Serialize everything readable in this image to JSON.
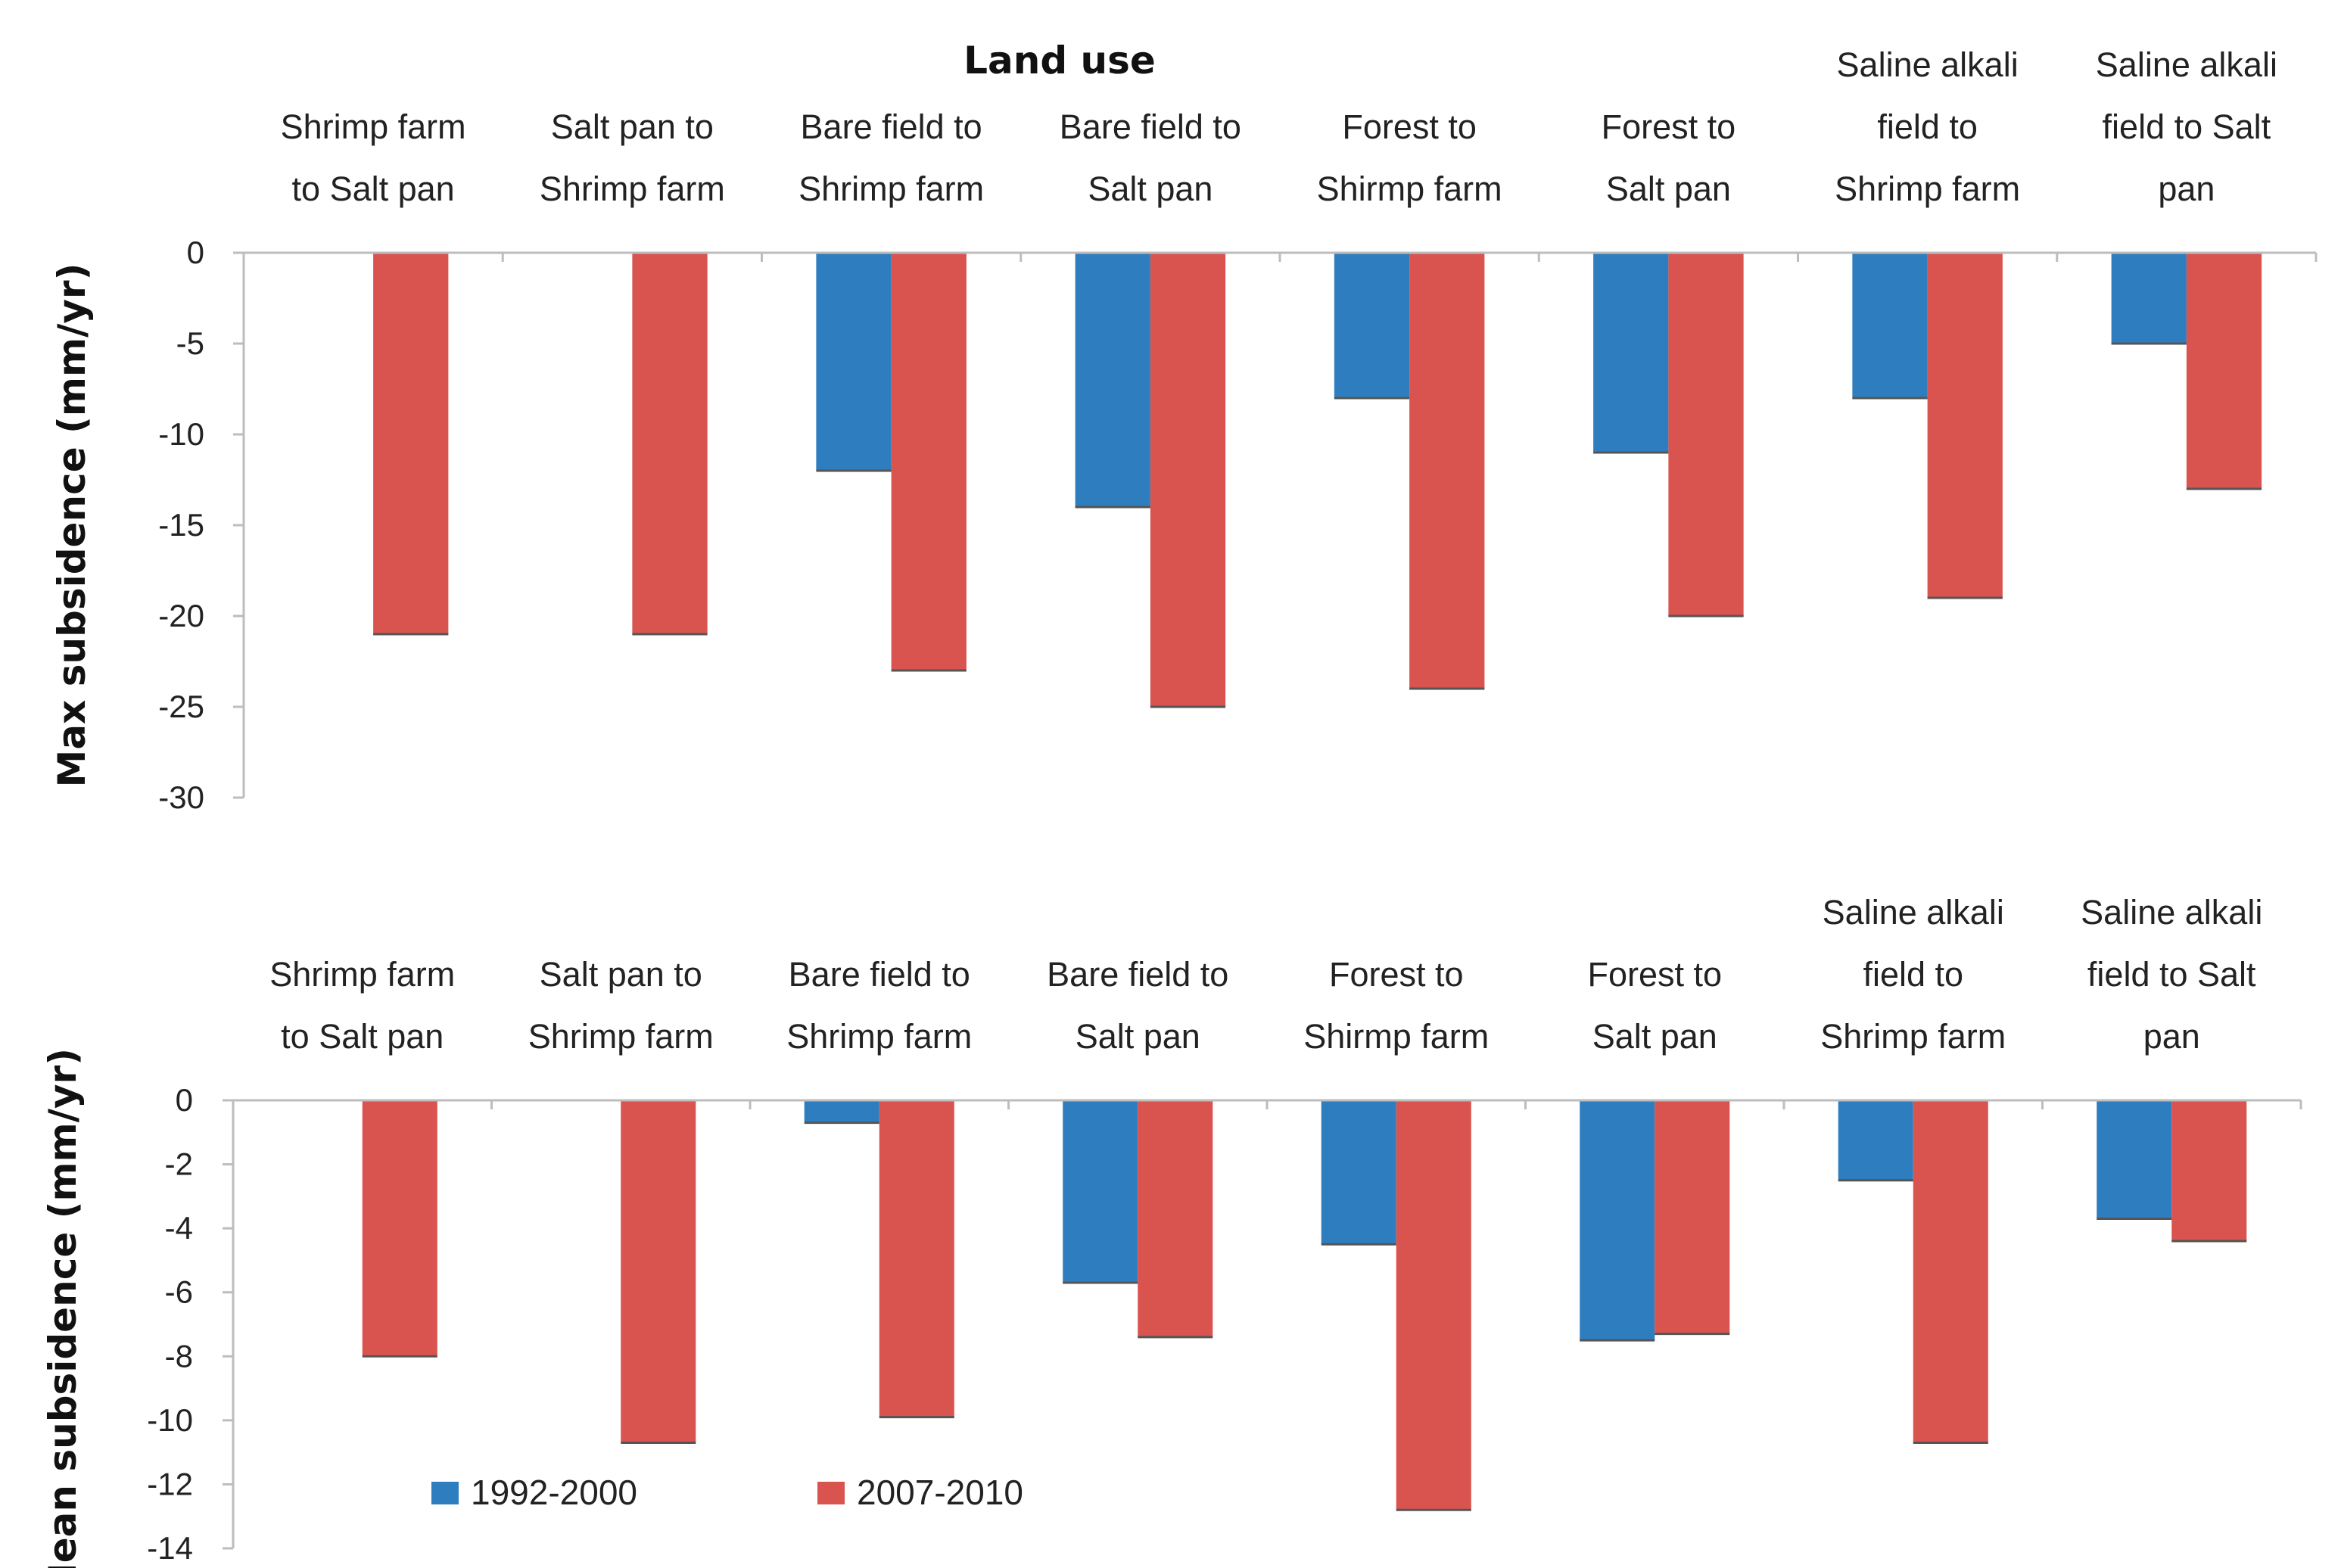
{
  "colors": {
    "series1": "#2e7ebf",
    "series2": "#d9534f",
    "axis": "#bdbdbd"
  },
  "legend": {
    "placement": "bottom-left"
  },
  "chart_data": [
    {
      "type": "bar",
      "title": "Land use",
      "ylabel": "Max subsidence (mm/yr)",
      "ylim": [
        -30,
        0
      ],
      "yticks": [
        "0",
        "-5",
        "-10",
        "-15",
        "-20",
        "-25",
        "-30"
      ],
      "categories": [
        [
          "Shrimp farm",
          "to Salt pan"
        ],
        [
          "Salt pan to",
          "Shrimp farm"
        ],
        [
          "Bare field to",
          "Shrimp farm"
        ],
        [
          "Bare field to",
          "Salt pan"
        ],
        [
          "Forest to",
          "Shirmp farm"
        ],
        [
          "Forest to",
          "Salt pan"
        ],
        [
          "Saline alkali",
          "field to",
          "Shrimp farm"
        ],
        [
          "Saline alkali",
          "field to Salt",
          "pan"
        ]
      ],
      "series": [
        {
          "name": "1992-2000",
          "values": [
            0,
            0,
            -12,
            -14,
            -8,
            -11,
            -8,
            -5
          ]
        },
        {
          "name": "2007-2010",
          "values": [
            -21,
            -21,
            -23,
            -25,
            -24,
            -20,
            -19,
            -13
          ]
        }
      ]
    },
    {
      "type": "bar",
      "ylabel": "Mean subsidence (mm/yr)",
      "ylim": [
        -14,
        0
      ],
      "yticks": [
        "0",
        "-2",
        "-4",
        "-6",
        "-8",
        "-10",
        "-12",
        "-14"
      ],
      "categories": [
        [
          "Shrimp farm",
          "to Salt pan"
        ],
        [
          "Salt pan to",
          "Shrimp farm"
        ],
        [
          "Bare field to",
          "Shrimp farm"
        ],
        [
          "Bare field to",
          "Salt pan"
        ],
        [
          "Forest to",
          "Shirmp farm"
        ],
        [
          "Forest to",
          "Salt pan"
        ],
        [
          "Saline alkali",
          "field to",
          "Shrimp farm"
        ],
        [
          "Saline alkali",
          "field to Salt",
          "pan"
        ]
      ],
      "series": [
        {
          "name": "1992-2000",
          "values": [
            0,
            0,
            -0.7,
            -5.7,
            -4.5,
            -7.5,
            -2.5,
            -3.7
          ]
        },
        {
          "name": "2007-2010",
          "values": [
            -8,
            -10.7,
            -9.9,
            -7.4,
            -12.8,
            -7.3,
            -10.7,
            -4.4
          ]
        }
      ]
    }
  ]
}
